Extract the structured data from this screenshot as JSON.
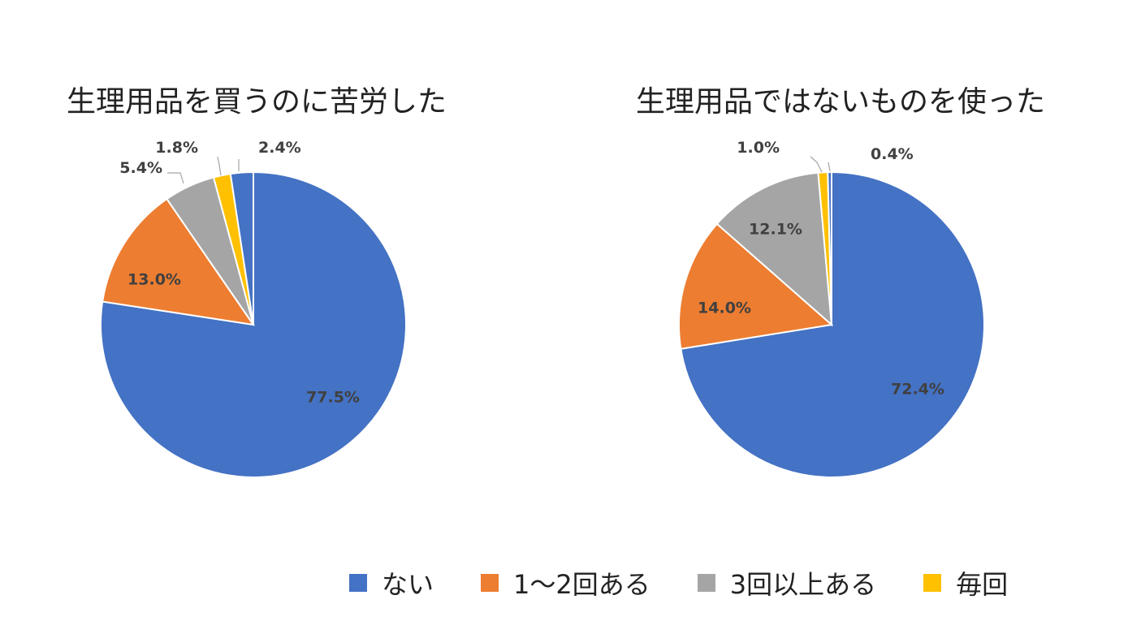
{
  "colors": [
    "#4472C4",
    "#ED7D31",
    "#A5A5A5",
    "#FFC000"
  ],
  "legend": [
    "ない",
    "1～2回ある",
    "3回以上ある",
    "毎回"
  ],
  "chart_data": [
    {
      "type": "pie",
      "title": "生理用品を買うのに苦労した",
      "categories": [
        "ない",
        "1～2回ある",
        "3回以上ある",
        "毎回"
      ],
      "values": [
        77.5,
        13.0,
        5.4,
        1.8
      ],
      "labels": [
        "77.5%",
        "13.0%",
        "5.4%",
        "1.8%"
      ],
      "extra_slice": {
        "value": 2.4,
        "label": "2.4%"
      }
    },
    {
      "type": "pie",
      "title": "生理用品ではないものを使った",
      "categories": [
        "ない",
        "1～2回ある",
        "3回以上ある",
        "毎回"
      ],
      "values": [
        72.4,
        14.0,
        12.1,
        1.0
      ],
      "labels": [
        "72.4%",
        "14.0%",
        "12.1%",
        "1.0%"
      ],
      "extra_slice": {
        "value": 0.4,
        "label": "0.4%"
      }
    }
  ]
}
